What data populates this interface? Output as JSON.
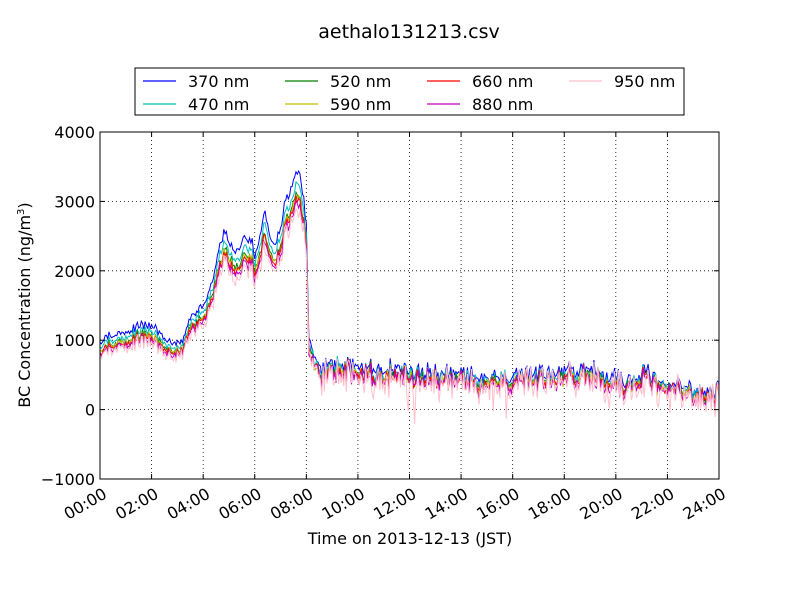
{
  "chart_data": {
    "type": "line",
    "title": "aethalo131213.csv",
    "xlabel": "Time on 2013-12-13 (JST)",
    "ylabel_main": "BC Concentration (ng/m",
    "ylabel_sup": "3",
    "ylabel_close": ")",
    "xlim_hours": [
      0,
      24
    ],
    "ylim": [
      -1000,
      4000
    ],
    "x_ticks": [
      {
        "hour": 0,
        "label": "00:00"
      },
      {
        "hour": 2,
        "label": "02:00"
      },
      {
        "hour": 4,
        "label": "04:00"
      },
      {
        "hour": 6,
        "label": "06:00"
      },
      {
        "hour": 8,
        "label": "08:00"
      },
      {
        "hour": 10,
        "label": "10:00"
      },
      {
        "hour": 12,
        "label": "12:00"
      },
      {
        "hour": 14,
        "label": "14:00"
      },
      {
        "hour": 16,
        "label": "16:00"
      },
      {
        "hour": 18,
        "label": "18:00"
      },
      {
        "hour": 20,
        "label": "20:00"
      },
      {
        "hour": 22,
        "label": "22:00"
      },
      {
        "hour": 24,
        "label": "24:00"
      }
    ],
    "y_ticks": [
      {
        "value": -1000,
        "label": "−1000"
      },
      {
        "value": 0,
        "label": "0"
      },
      {
        "value": 1000,
        "label": "1000"
      },
      {
        "value": 2000,
        "label": "2000"
      },
      {
        "value": 3000,
        "label": "3000"
      },
      {
        "value": 4000,
        "label": "4000"
      }
    ],
    "grid": true,
    "legend_position": "top",
    "series": [
      {
        "name": "370 nm",
        "color": "#0000ff",
        "scale": 1.08,
        "offset": 40,
        "noise": 0.85,
        "seed": 11
      },
      {
        "name": "470 nm",
        "color": "#00bfbf",
        "scale": 1.03,
        "offset": 15,
        "noise": 0.9,
        "seed": 23
      },
      {
        "name": "520 nm",
        "color": "#008000",
        "scale": 0.99,
        "offset": 0,
        "noise": 0.95,
        "seed": 37
      },
      {
        "name": "590 nm",
        "color": "#bfbf00",
        "scale": 0.98,
        "offset": -5,
        "noise": 1.0,
        "seed": 41
      },
      {
        "name": "660 nm",
        "color": "#ff0000",
        "scale": 0.97,
        "offset": -10,
        "noise": 1.0,
        "seed": 53
      },
      {
        "name": "880 nm",
        "color": "#bf00bf",
        "scale": 0.95,
        "offset": -20,
        "noise": 1.1,
        "seed": 67
      },
      {
        "name": "950 nm",
        "color": "#ffc0cb",
        "scale": 0.93,
        "offset": -30,
        "noise": 1.6,
        "seed": 79
      }
    ],
    "trend": [
      [
        0.0,
        850
      ],
      [
        0.3,
        950
      ],
      [
        0.7,
        960
      ],
      [
        1.0,
        990
      ],
      [
        1.3,
        1050
      ],
      [
        1.6,
        1090
      ],
      [
        2.0,
        1080
      ],
      [
        2.3,
        1000
      ],
      [
        2.6,
        900
      ],
      [
        2.9,
        860
      ],
      [
        3.1,
        840
      ],
      [
        3.3,
        950
      ],
      [
        3.5,
        1200
      ],
      [
        3.8,
        1300
      ],
      [
        4.0,
        1380
      ],
      [
        4.2,
        1500
      ],
      [
        4.4,
        1750
      ],
      [
        4.6,
        2150
      ],
      [
        4.8,
        2300
      ],
      [
        5.0,
        2200
      ],
      [
        5.3,
        2100
      ],
      [
        5.6,
        2280
      ],
      [
        5.9,
        2200
      ],
      [
        6.0,
        2050
      ],
      [
        6.2,
        2300
      ],
      [
        6.4,
        2650
      ],
      [
        6.6,
        2200
      ],
      [
        6.8,
        2150
      ],
      [
        7.0,
        2400
      ],
      [
        7.2,
        2750
      ],
      [
        7.4,
        2900
      ],
      [
        7.55,
        3050
      ],
      [
        7.7,
        3200
      ],
      [
        7.85,
        2900
      ],
      [
        8.0,
        2400
      ],
      [
        8.1,
        900
      ],
      [
        8.3,
        650
      ],
      [
        8.6,
        500
      ],
      [
        9.0,
        600
      ],
      [
        10.0,
        560
      ],
      [
        11.0,
        510
      ],
      [
        12.0,
        480
      ],
      [
        13.0,
        430
      ],
      [
        14.0,
        420
      ],
      [
        15.0,
        400
      ],
      [
        16.0,
        430
      ],
      [
        17.0,
        450
      ],
      [
        18.0,
        480
      ],
      [
        19.0,
        520
      ],
      [
        19.5,
        480
      ],
      [
        20.0,
        400
      ],
      [
        20.3,
        300
      ],
      [
        20.6,
        420
      ],
      [
        21.0,
        500
      ],
      [
        21.5,
        380
      ],
      [
        22.0,
        300
      ],
      [
        23.0,
        230
      ],
      [
        24.0,
        200
      ]
    ]
  }
}
